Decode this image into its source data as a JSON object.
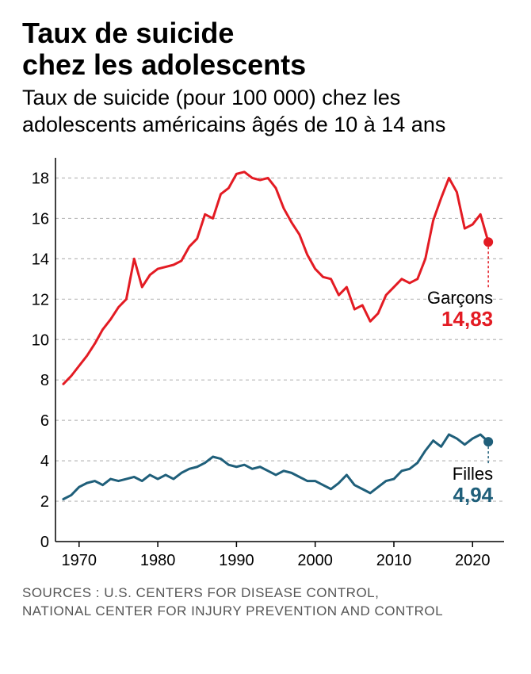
{
  "title_line1": "Taux de suicide",
  "title_line2": "chez les adolescents",
  "subtitle": "Taux de suicide (pour 100 000) chez les adolescents américains âgés de 10 à 14 ans",
  "sources_line1": "SOURCES : U.S. CENTERS FOR DISEASE CONTROL,",
  "sources_line2": "NATIONAL CENTER FOR INJURY PREVENTION AND CONTROL",
  "chart": {
    "type": "line",
    "background_color": "#ffffff",
    "grid_color": "#b9b9b9",
    "axis_color": "#000000",
    "xlim": [
      1967,
      2024
    ],
    "ylim": [
      0,
      19
    ],
    "yticks": [
      0,
      2,
      4,
      6,
      8,
      10,
      12,
      14,
      16,
      18
    ],
    "xticks": [
      1970,
      1980,
      1990,
      2000,
      2010,
      2020
    ],
    "ytick_fontsize": 20,
    "xtick_fontsize": 20,
    "tick_color": "#000000",
    "grid_dash": "4,4",
    "line_width": 3,
    "series": {
      "boys": {
        "label": "Garçons",
        "color": "#e31b23",
        "end_value": 14.83,
        "end_value_text": "14,83",
        "data": [
          [
            1968,
            7.8
          ],
          [
            1969,
            8.2
          ],
          [
            1970,
            8.7
          ],
          [
            1971,
            9.2
          ],
          [
            1972,
            9.8
          ],
          [
            1973,
            10.5
          ],
          [
            1974,
            11.0
          ],
          [
            1975,
            11.6
          ],
          [
            1976,
            12.0
          ],
          [
            1977,
            14.0
          ],
          [
            1978,
            12.6
          ],
          [
            1979,
            13.2
          ],
          [
            1980,
            13.5
          ],
          [
            1981,
            13.6
          ],
          [
            1982,
            13.7
          ],
          [
            1983,
            13.9
          ],
          [
            1984,
            14.6
          ],
          [
            1985,
            15.0
          ],
          [
            1986,
            16.2
          ],
          [
            1987,
            16.0
          ],
          [
            1988,
            17.2
          ],
          [
            1989,
            17.5
          ],
          [
            1990,
            18.2
          ],
          [
            1991,
            18.3
          ],
          [
            1992,
            18.0
          ],
          [
            1993,
            17.9
          ],
          [
            1994,
            18.0
          ],
          [
            1995,
            17.5
          ],
          [
            1996,
            16.5
          ],
          [
            1997,
            15.8
          ],
          [
            1998,
            15.2
          ],
          [
            1999,
            14.2
          ],
          [
            2000,
            13.5
          ],
          [
            2001,
            13.1
          ],
          [
            2002,
            13.0
          ],
          [
            2003,
            12.2
          ],
          [
            2004,
            12.6
          ],
          [
            2005,
            11.5
          ],
          [
            2006,
            11.7
          ],
          [
            2007,
            10.9
          ],
          [
            2008,
            11.3
          ],
          [
            2009,
            12.2
          ],
          [
            2010,
            12.6
          ],
          [
            2011,
            13.0
          ],
          [
            2012,
            12.8
          ],
          [
            2013,
            13.0
          ],
          [
            2014,
            14.0
          ],
          [
            2015,
            15.9
          ],
          [
            2016,
            17.0
          ],
          [
            2017,
            18.0
          ],
          [
            2018,
            17.3
          ],
          [
            2019,
            15.5
          ],
          [
            2020,
            15.7
          ],
          [
            2021,
            16.2
          ],
          [
            2022,
            14.83
          ]
        ]
      },
      "girls": {
        "label": "Filles",
        "color": "#1f5f7a",
        "end_value": 4.94,
        "end_value_text": "4,94",
        "data": [
          [
            1968,
            2.1
          ],
          [
            1969,
            2.3
          ],
          [
            1970,
            2.7
          ],
          [
            1971,
            2.9
          ],
          [
            1972,
            3.0
          ],
          [
            1973,
            2.8
          ],
          [
            1974,
            3.1
          ],
          [
            1975,
            3.0
          ],
          [
            1976,
            3.1
          ],
          [
            1977,
            3.2
          ],
          [
            1978,
            3.0
          ],
          [
            1979,
            3.3
          ],
          [
            1980,
            3.1
          ],
          [
            1981,
            3.3
          ],
          [
            1982,
            3.1
          ],
          [
            1983,
            3.4
          ],
          [
            1984,
            3.6
          ],
          [
            1985,
            3.7
          ],
          [
            1986,
            3.9
          ],
          [
            1987,
            4.2
          ],
          [
            1988,
            4.1
          ],
          [
            1989,
            3.8
          ],
          [
            1990,
            3.7
          ],
          [
            1991,
            3.8
          ],
          [
            1992,
            3.6
          ],
          [
            1993,
            3.7
          ],
          [
            1994,
            3.5
          ],
          [
            1995,
            3.3
          ],
          [
            1996,
            3.5
          ],
          [
            1997,
            3.4
          ],
          [
            1998,
            3.2
          ],
          [
            1999,
            3.0
          ],
          [
            2000,
            3.0
          ],
          [
            2001,
            2.8
          ],
          [
            2002,
            2.6
          ],
          [
            2003,
            2.9
          ],
          [
            2004,
            3.3
          ],
          [
            2005,
            2.8
          ],
          [
            2006,
            2.6
          ],
          [
            2007,
            2.4
          ],
          [
            2008,
            2.7
          ],
          [
            2009,
            3.0
          ],
          [
            2010,
            3.1
          ],
          [
            2011,
            3.5
          ],
          [
            2012,
            3.6
          ],
          [
            2013,
            3.9
          ],
          [
            2014,
            4.5
          ],
          [
            2015,
            5.0
          ],
          [
            2016,
            4.7
          ],
          [
            2017,
            5.3
          ],
          [
            2018,
            5.1
          ],
          [
            2019,
            4.8
          ],
          [
            2020,
            5.1
          ],
          [
            2021,
            5.3
          ],
          [
            2022,
            4.94
          ]
        ]
      }
    },
    "endpoint_marker_radius": 6,
    "endpoint_dash": "3,3",
    "label_fontsize": 22,
    "value_fontsize": 26,
    "value_fontweight": 700
  }
}
